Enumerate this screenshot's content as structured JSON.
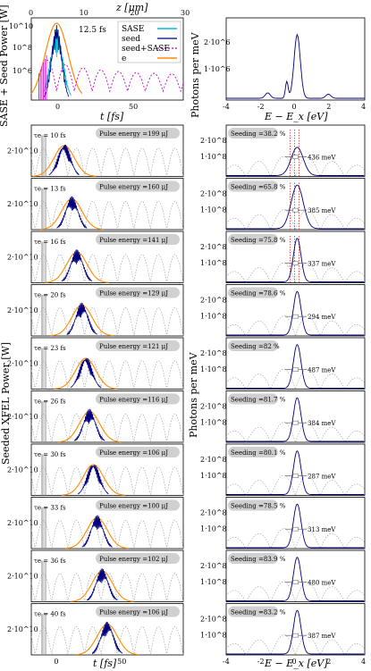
{
  "top_left": {
    "ylabel": "SASE + Seed Power [W]",
    "xlabel": "t [fs]",
    "top_axis_label": "z [μm]",
    "top_ticks": [
      "0",
      "10",
      "20",
      "30"
    ],
    "bottom_ticks": [
      "0",
      "50"
    ],
    "y_ticks": [
      "10^10",
      "10^8",
      "10^6"
    ],
    "annotation": "12.5 fs",
    "legend": [
      "SASE",
      "seed",
      "seed+SASE",
      "e"
    ]
  },
  "top_right": {
    "ylabel": "Photons per meV",
    "xlabel": "E − E_x [eV]",
    "y_ticks": [
      "2·10^6",
      "1·10^6"
    ],
    "x_ticks": [
      "-4",
      "-2",
      "0",
      "2",
      "4"
    ]
  },
  "grid": {
    "ylabel_left": "Seeded XFEL Power [W]",
    "ylabel_right": "Photons per meV",
    "xlabel_left": "t [fs]",
    "xlabel_right": "E − E_x [eV]",
    "left_y_tick": "2·10^10",
    "right_y_ticks": [
      "2·10^8",
      "1·10^8"
    ],
    "left_x_ticks": [
      "0",
      "50"
    ],
    "right_x_ticks": [
      "-4",
      "-2",
      "0",
      "2",
      "4"
    ]
  },
  "chart_data": [
    {
      "type": "line",
      "panel": "seeded-power-vs-time",
      "x_unit": "fs",
      "series_param": "tau_e",
      "rows": [
        {
          "tau_e": "τe = 10 fs",
          "pulse_energy": "Pulse energy =199 μJ",
          "seeding": "Seeding =38.2 %",
          "bandwidth": "436 meV"
        },
        {
          "tau_e": "τe = 13 fs",
          "pulse_energy": "Pulse energy =160 μJ",
          "seeding": "Seeding =65.8 %",
          "bandwidth": "385 meV"
        },
        {
          "tau_e": "τe = 16 fs",
          "pulse_energy": "Pulse energy =141 μJ",
          "seeding": "Seeding =75.8 %",
          "bandwidth": "337 meV"
        },
        {
          "tau_e": "τe = 20 fs",
          "pulse_energy": "Pulse energy =129 μJ",
          "seeding": "Seeding =78.6 %",
          "bandwidth": "294 meV"
        },
        {
          "tau_e": "τe = 23 fs",
          "pulse_energy": "Pulse energy =121 μJ",
          "seeding": "Seeding =82 %",
          "bandwidth": "487 meV"
        },
        {
          "tau_e": "τe = 26 fs",
          "pulse_energy": "Pulse energy =116 μJ",
          "seeding": "Seeding =81.7 %",
          "bandwidth": "384 meV"
        },
        {
          "tau_e": "τe = 30 fs",
          "pulse_energy": "Pulse energy =106 μJ",
          "seeding": "Seeding =80.1 %",
          "bandwidth": "287 meV"
        },
        {
          "tau_e": "τe = 33 fs",
          "pulse_energy": "Pulse energy =100 μJ",
          "seeding": "Seeding =78.5 %",
          "bandwidth": "313 meV"
        },
        {
          "tau_e": "τe = 36 fs",
          "pulse_energy": "Pulse energy =102 μJ",
          "seeding": "Seeding =83.9 %",
          "bandwidth": "480 meV"
        },
        {
          "tau_e": "τe = 40 fs",
          "pulse_energy": "Pulse energy =106 μJ",
          "seeding": "Seeding =83.2 %",
          "bandwidth": "387 meV"
        }
      ],
      "peak_time_fs": [
        6,
        12,
        16,
        20,
        23,
        26,
        29,
        32,
        36,
        40
      ],
      "xlim": [
        -20,
        100
      ]
    }
  ]
}
